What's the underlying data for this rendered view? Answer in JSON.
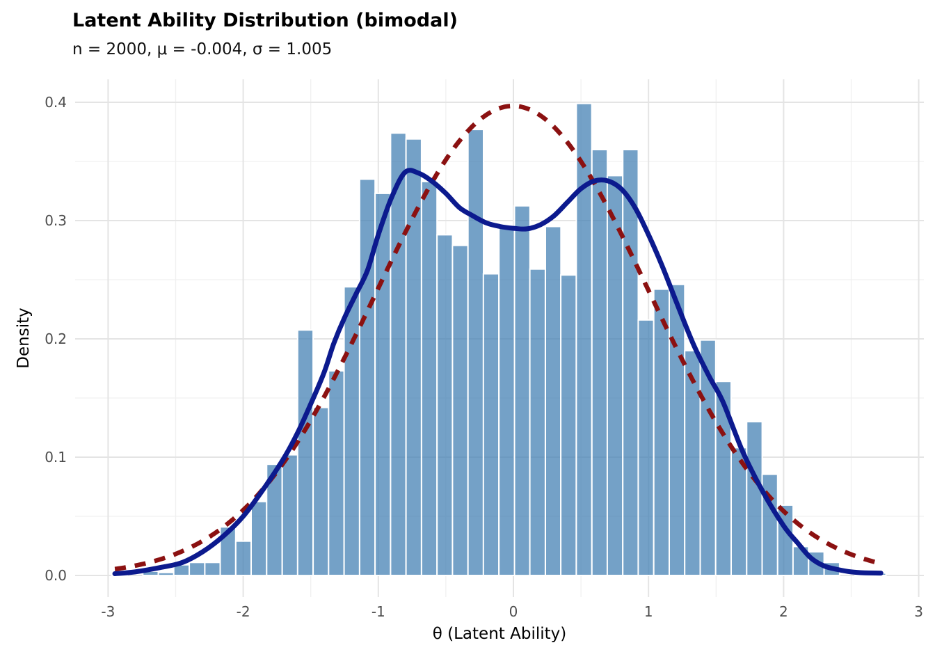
{
  "figure": {
    "title": "Latent Ability Distribution (bimodal)",
    "subtitle": "n = 2000, μ = -0.004, σ = 1.005",
    "x_axis_label": "θ (Latent Ability)",
    "y_axis_label": "Density"
  },
  "colors": {
    "background": "#ffffff",
    "bar_fill": "#4682B4",
    "bar_fill_opacity": 0.75,
    "bar_border": "#ffffff",
    "kde_line": "#0C1A8E",
    "normal_line": "#8B1111",
    "grid_major": "#E4E4E4",
    "grid_minor": "#F0F0F0",
    "tick_text": "#4D4D4D",
    "axis_text": "#000000"
  },
  "chart_data": {
    "type": "bar",
    "subtype": "histogram-with-density-overlays",
    "title": "Latent Ability Distribution (bimodal)",
    "subtitle": "n = 2000, μ = -0.004, σ = 1.005",
    "xlabel": "θ (Latent Ability)",
    "ylabel": "Density",
    "xlim": [
      -3.25,
      3.04
    ],
    "ylim": [
      0,
      0.42
    ],
    "grid": true,
    "legend": "none",
    "x_ticks": [
      -3,
      -2,
      -1,
      0,
      1,
      2,
      3
    ],
    "x_tick_labels": [
      "-3",
      "-2",
      "-1",
      "0",
      "1",
      "2",
      "3"
    ],
    "x_minor_ticks": [
      -2.5,
      -1.5,
      -0.5,
      0.5,
      1.5,
      2.5
    ],
    "y_ticks": [
      0.0,
      0.1,
      0.2,
      0.3,
      0.4
    ],
    "y_tick_labels": [
      "0.0",
      "0.1",
      "0.2",
      "0.3",
      "0.4"
    ],
    "y_minor_ticks": [
      0.05,
      0.15,
      0.25,
      0.35
    ],
    "stats": {
      "n": 2000,
      "mu": -0.004,
      "sigma": 1.005
    },
    "histogram": {
      "bin_width": 0.1146,
      "bin_centers": [
        -2.915,
        -2.8,
        -2.686,
        -2.571,
        -2.457,
        -2.342,
        -2.227,
        -2.113,
        -1.998,
        -1.884,
        -1.769,
        -1.654,
        -1.54,
        -1.425,
        -1.311,
        -1.196,
        -1.081,
        -0.967,
        -0.852,
        -0.738,
        -0.623,
        -0.508,
        -0.394,
        -0.279,
        -0.165,
        -0.05,
        0.065,
        0.179,
        0.294,
        0.408,
        0.523,
        0.638,
        0.752,
        0.867,
        0.981,
        1.096,
        1.211,
        1.325,
        1.44,
        1.554,
        1.669,
        1.784,
        1.898,
        2.013,
        2.127,
        2.242,
        2.357,
        2.471,
        2.586,
        2.7
      ],
      "densities": [
        0.0025,
        0,
        0.0035,
        0.0025,
        0.009,
        0.011,
        0.011,
        0.041,
        0.029,
        0.0625,
        0.094,
        0.102,
        0.2075,
        0.142,
        0.173,
        0.244,
        0.335,
        0.323,
        0.374,
        0.369,
        0.333,
        0.288,
        0.279,
        0.377,
        0.255,
        0.294,
        0.3125,
        0.259,
        0.295,
        0.254,
        0.399,
        0.36,
        0.338,
        0.36,
        0.216,
        0.242,
        0.246,
        0.19,
        0.199,
        0.164,
        0.108,
        0.13,
        0.0855,
        0.0595,
        0.0245,
        0.02,
        0.011,
        0,
        0.002,
        0.002
      ]
    },
    "kde_curve": {
      "name": "kernel-density-estimate",
      "x": [
        -2.95,
        -2.8,
        -2.6,
        -2.45,
        -2.3,
        -2.15,
        -2.0,
        -1.85,
        -1.7,
        -1.6,
        -1.5,
        -1.4,
        -1.33,
        -1.25,
        -1.16,
        -1.08,
        -1.0,
        -0.9,
        -0.8,
        -0.7,
        -0.6,
        -0.5,
        -0.4,
        -0.3,
        -0.2,
        -0.1,
        0.0,
        0.1,
        0.2,
        0.3,
        0.4,
        0.5,
        0.6,
        0.7,
        0.8,
        0.9,
        1.0,
        1.1,
        1.2,
        1.33,
        1.45,
        1.55,
        1.7,
        1.85,
        2.0,
        2.1,
        2.2,
        2.3,
        2.4,
        2.5,
        2.6,
        2.72
      ],
      "y": [
        0.0015,
        0.003,
        0.007,
        0.011,
        0.02,
        0.033,
        0.05,
        0.073,
        0.099,
        0.12,
        0.145,
        0.172,
        0.196,
        0.218,
        0.239,
        0.258,
        0.288,
        0.32,
        0.341,
        0.34,
        0.333,
        0.323,
        0.311,
        0.304,
        0.298,
        0.295,
        0.2935,
        0.293,
        0.2965,
        0.304,
        0.3155,
        0.327,
        0.3335,
        0.3335,
        0.3265,
        0.311,
        0.288,
        0.262,
        0.233,
        0.196,
        0.168,
        0.147,
        0.104,
        0.07,
        0.042,
        0.028,
        0.015,
        0.008,
        0.005,
        0.003,
        0.0022,
        0.002
      ]
    },
    "normal_curve": {
      "name": "fitted-normal-density",
      "style": "dashed",
      "mean": -0.004,
      "sd": 1.005,
      "peak_density": 0.3969,
      "x_range": [
        -2.95,
        2.72
      ]
    }
  }
}
